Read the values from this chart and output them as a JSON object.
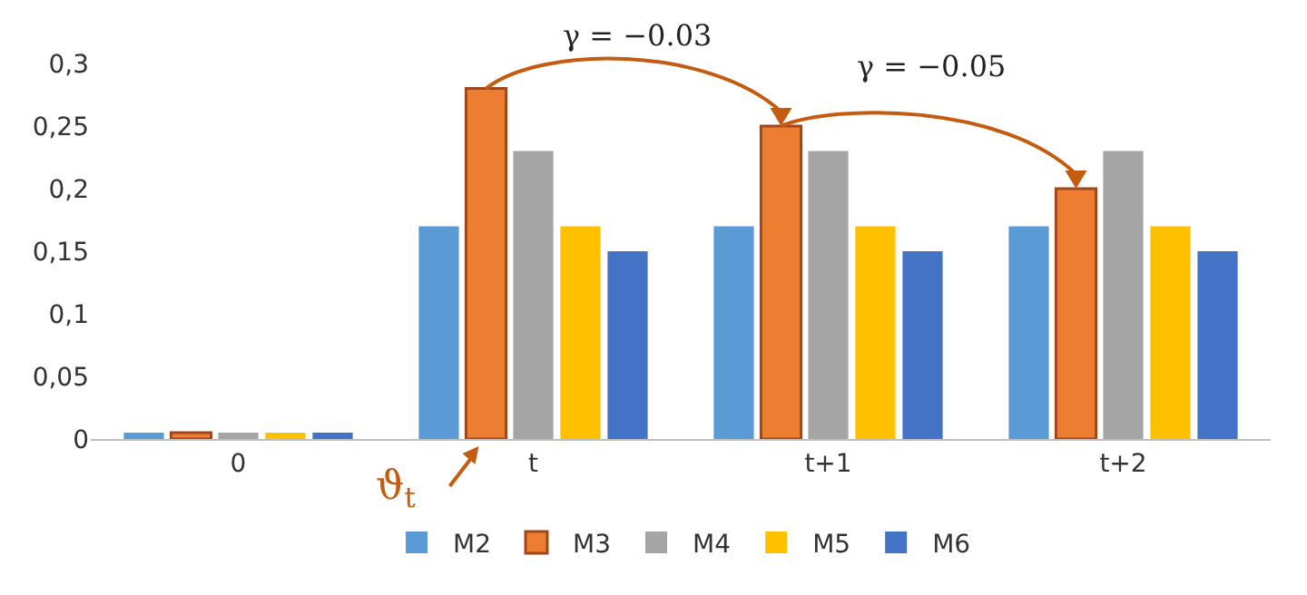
{
  "chart_data": {
    "type": "bar",
    "categories": [
      "0",
      "t",
      "t+1",
      "t+2"
    ],
    "series": [
      {
        "name": "M2",
        "color": "#5b9bd5",
        "values": [
          0.005,
          0.17,
          0.17,
          0.17
        ]
      },
      {
        "name": "M3",
        "color": "#ed7d31",
        "values": [
          0.005,
          0.28,
          0.25,
          0.2
        ]
      },
      {
        "name": "M4",
        "color": "#a5a5a5",
        "values": [
          0.005,
          0.23,
          0.23,
          0.23
        ]
      },
      {
        "name": "M5",
        "color": "#ffc000",
        "values": [
          0.005,
          0.17,
          0.17,
          0.17
        ]
      },
      {
        "name": "M6",
        "color": "#4472c4",
        "values": [
          0.005,
          0.15,
          0.15,
          0.15
        ]
      }
    ],
    "ylim": [
      0,
      0.3
    ],
    "yticks": [
      0,
      {
        "value": 0.05,
        "label": "0,05"
      },
      {
        "value": 0.1,
        "label": "0,1"
      },
      {
        "value": 0.15,
        "label": "0,15"
      },
      {
        "value": 0.2,
        "label": "0,2"
      },
      {
        "value": 0.25,
        "label": "0,25"
      },
      {
        "value": 0.3,
        "label": "0,3"
      }
    ],
    "annotations": [
      "γ = −0.03",
      "γ = −0.05",
      "ϑ$_{t}$"
    ],
    "grid": false,
    "legend": "bottom"
  }
}
